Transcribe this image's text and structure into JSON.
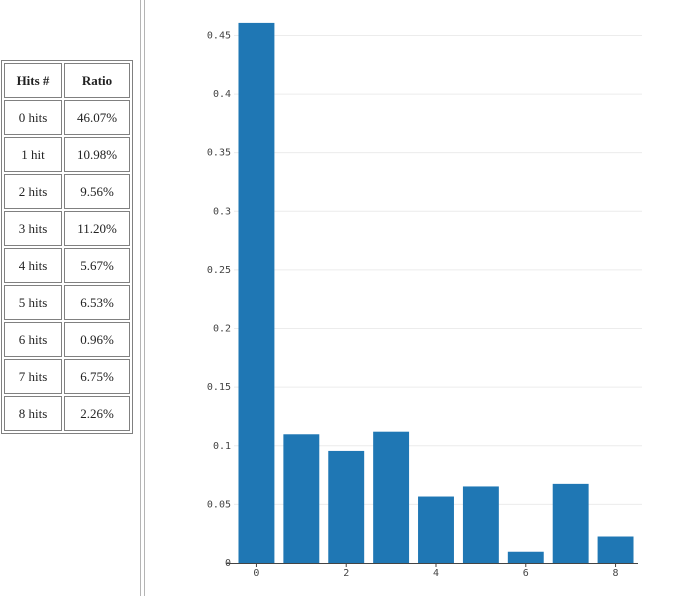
{
  "table": {
    "headers": [
      "Hits #",
      "Ratio"
    ],
    "rows": [
      [
        "0 hits",
        "46.07%"
      ],
      [
        "1 hit",
        "10.98%"
      ],
      [
        "2 hits",
        "9.56%"
      ],
      [
        "3 hits",
        "11.20%"
      ],
      [
        "4 hits",
        "5.67%"
      ],
      [
        "5 hits",
        "6.53%"
      ],
      [
        "6 hits",
        "0.96%"
      ],
      [
        "7 hits",
        "6.75%"
      ],
      [
        "8 hits",
        "2.26%"
      ]
    ]
  },
  "chart_data": {
    "type": "bar",
    "x": [
      0,
      1,
      2,
      3,
      4,
      5,
      6,
      7,
      8
    ],
    "values": [
      0.4607,
      0.1098,
      0.0956,
      0.112,
      0.0567,
      0.0653,
      0.0096,
      0.0675,
      0.0226
    ],
    "xticks": [
      "0",
      "2",
      "4",
      "6",
      "8"
    ],
    "yticks": [
      "0",
      "0.05",
      "0.1",
      "0.15",
      "0.2",
      "0.25",
      "0.3",
      "0.35",
      "0.4",
      "0.45"
    ],
    "ylim": [
      0,
      0.47
    ],
    "xlim": [
      -0.5,
      8.5
    ],
    "grid": true,
    "bar_color": "#1f77b4"
  }
}
